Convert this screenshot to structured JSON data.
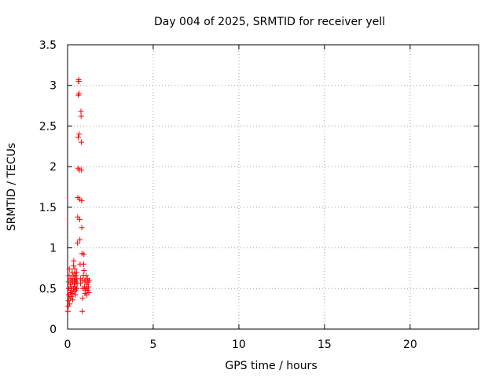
{
  "chart_data": {
    "type": "scatter",
    "title": "Day 004 of 2025, SRMTID for receiver yell",
    "xlabel": "GPS time / hours",
    "ylabel": "SRMTID / TECUs",
    "xlim": [
      0,
      24
    ],
    "ylim": [
      0,
      3.5
    ],
    "xticks": [
      0,
      5,
      10,
      15,
      20
    ],
    "yticks": [
      0,
      0.5,
      1,
      1.5,
      2,
      2.5,
      3,
      3.5
    ],
    "xtick_labels": [
      "0",
      "5",
      "10",
      "15",
      "20"
    ],
    "ytick_labels": [
      "0",
      "0.5",
      "1",
      "1.5",
      "2",
      "2.5",
      "3",
      "3.5"
    ],
    "grid": true,
    "marker": "+",
    "color": "#ff0000",
    "series": [
      {
        "name": "yell",
        "points": [
          [
            0.02,
            0.22
          ],
          [
            0.04,
            0.28
          ],
          [
            0.05,
            0.35
          ],
          [
            0.06,
            0.42
          ],
          [
            0.07,
            0.5
          ],
          [
            0.08,
            0.58
          ],
          [
            0.09,
            0.66
          ],
          [
            0.1,
            0.74
          ],
          [
            0.12,
            0.31
          ],
          [
            0.14,
            0.38
          ],
          [
            0.15,
            0.45
          ],
          [
            0.16,
            0.55
          ],
          [
            0.18,
            0.62
          ],
          [
            0.2,
            0.48
          ],
          [
            0.22,
            0.4
          ],
          [
            0.24,
            0.52
          ],
          [
            0.25,
            0.6
          ],
          [
            0.27,
            0.7
          ],
          [
            0.28,
            0.44
          ],
          [
            0.3,
            0.36
          ],
          [
            0.31,
            0.58
          ],
          [
            0.32,
            0.65
          ],
          [
            0.34,
            0.5
          ],
          [
            0.35,
            0.78
          ],
          [
            0.36,
            0.84
          ],
          [
            0.38,
            0.46
          ],
          [
            0.39,
            0.56
          ],
          [
            0.4,
            0.62
          ],
          [
            0.41,
            0.68
          ],
          [
            0.42,
            0.74
          ],
          [
            0.44,
            0.52
          ],
          [
            0.45,
            0.6
          ],
          [
            0.46,
            0.42
          ],
          [
            0.48,
            0.48
          ],
          [
            0.49,
            0.66
          ],
          [
            0.5,
            0.58
          ],
          [
            0.52,
            0.7
          ],
          [
            0.53,
            0.5
          ],
          [
            0.54,
            0.62
          ],
          [
            0.56,
            0.56
          ],
          [
            0.58,
            1.06
          ],
          [
            0.59,
            1.38
          ],
          [
            0.6,
            1.62
          ],
          [
            0.61,
            1.98
          ],
          [
            0.62,
            2.36
          ],
          [
            0.63,
            2.88
          ],
          [
            0.64,
            3.05
          ],
          [
            0.65,
            3.07
          ],
          [
            0.66,
            3.05
          ],
          [
            0.67,
            2.9
          ],
          [
            0.68,
            2.4
          ],
          [
            0.69,
            1.96
          ],
          [
            0.7,
            1.6
          ],
          [
            0.71,
            1.35
          ],
          [
            0.72,
            1.1
          ],
          [
            0.73,
            0.8
          ],
          [
            0.75,
            0.62
          ],
          [
            0.76,
            0.56
          ],
          [
            0.78,
            2.68
          ],
          [
            0.79,
            2.62
          ],
          [
            0.8,
            2.3
          ],
          [
            0.81,
            1.96
          ],
          [
            0.82,
            1.58
          ],
          [
            0.83,
            1.25
          ],
          [
            0.84,
            0.93
          ],
          [
            0.85,
            0.6
          ],
          [
            0.86,
            0.22
          ],
          [
            0.88,
            0.38
          ],
          [
            0.9,
            0.5
          ],
          [
            0.92,
            0.66
          ],
          [
            0.94,
            0.8
          ],
          [
            0.95,
            0.92
          ],
          [
            0.96,
            0.72
          ],
          [
            0.98,
            0.52
          ],
          [
            1.0,
            0.6
          ],
          [
            1.02,
            0.44
          ],
          [
            1.04,
            0.48
          ],
          [
            1.06,
            0.58
          ],
          [
            1.08,
            0.66
          ],
          [
            1.1,
            0.5
          ],
          [
            1.12,
            0.42
          ],
          [
            1.14,
            0.55
          ],
          [
            1.16,
            0.62
          ],
          [
            1.18,
            0.48
          ],
          [
            1.2,
            0.58
          ],
          [
            1.22,
            0.52
          ],
          [
            1.24,
            0.45
          ],
          [
            1.26,
            0.6
          ]
        ]
      }
    ]
  }
}
